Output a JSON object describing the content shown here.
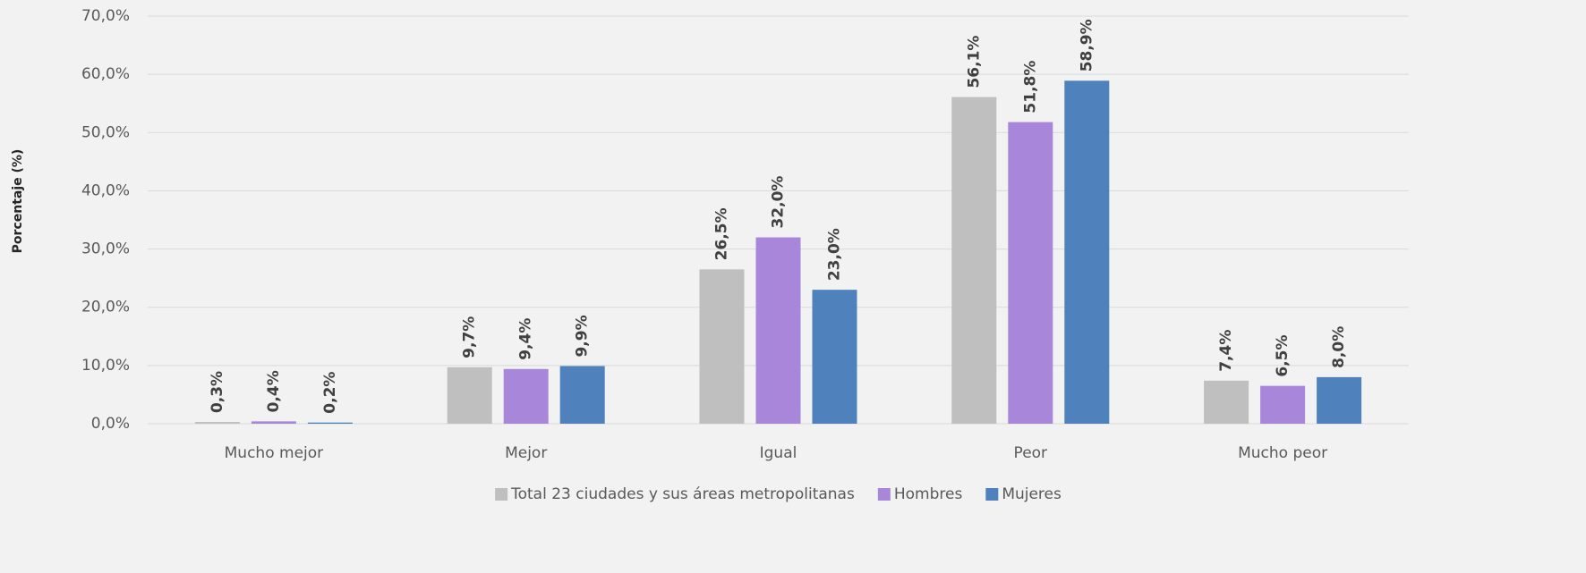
{
  "chart_data": {
    "type": "bar",
    "y_label": "Porcentaje (%)",
    "categories": [
      "Mucho mejor",
      "Mejor",
      "Igual",
      "Peor",
      "Mucho peor"
    ],
    "series": [
      {
        "name": "Total 23 ciudades y sus áreas metropolitanas",
        "color": "#bfbfbf",
        "values": [
          0.3,
          9.7,
          26.5,
          56.1,
          7.4
        ],
        "value_labels": [
          "0,3%",
          "9,7%",
          "26,5%",
          "56,1%",
          "7,4%"
        ]
      },
      {
        "name": "Hombres",
        "color": "#a886da",
        "values": [
          0.4,
          9.4,
          32.0,
          51.8,
          6.5
        ],
        "value_labels": [
          "0,4%",
          "9,4%",
          "32,0%",
          "51,8%",
          "6,5%"
        ]
      },
      {
        "name": "Mujeres",
        "color": "#4f81bd",
        "values": [
          0.2,
          9.9,
          23.0,
          58.9,
          8.0
        ],
        "value_labels": [
          "0,2%",
          "9,9%",
          "23,0%",
          "58,9%",
          "8,0%"
        ]
      }
    ],
    "ylim": [
      0,
      70
    ],
    "yticks": [
      {
        "value": 0,
        "label": "0,0%"
      },
      {
        "value": 10,
        "label": "10,0%"
      },
      {
        "value": 20,
        "label": "20,0%"
      },
      {
        "value": 30,
        "label": "30,0%"
      },
      {
        "value": 40,
        "label": "40,0%"
      },
      {
        "value": 50,
        "label": "50,0%"
      },
      {
        "value": 60,
        "label": "60,0%"
      },
      {
        "value": 70,
        "label": "70,0%"
      }
    ],
    "grid": true,
    "legend": "bottom"
  }
}
